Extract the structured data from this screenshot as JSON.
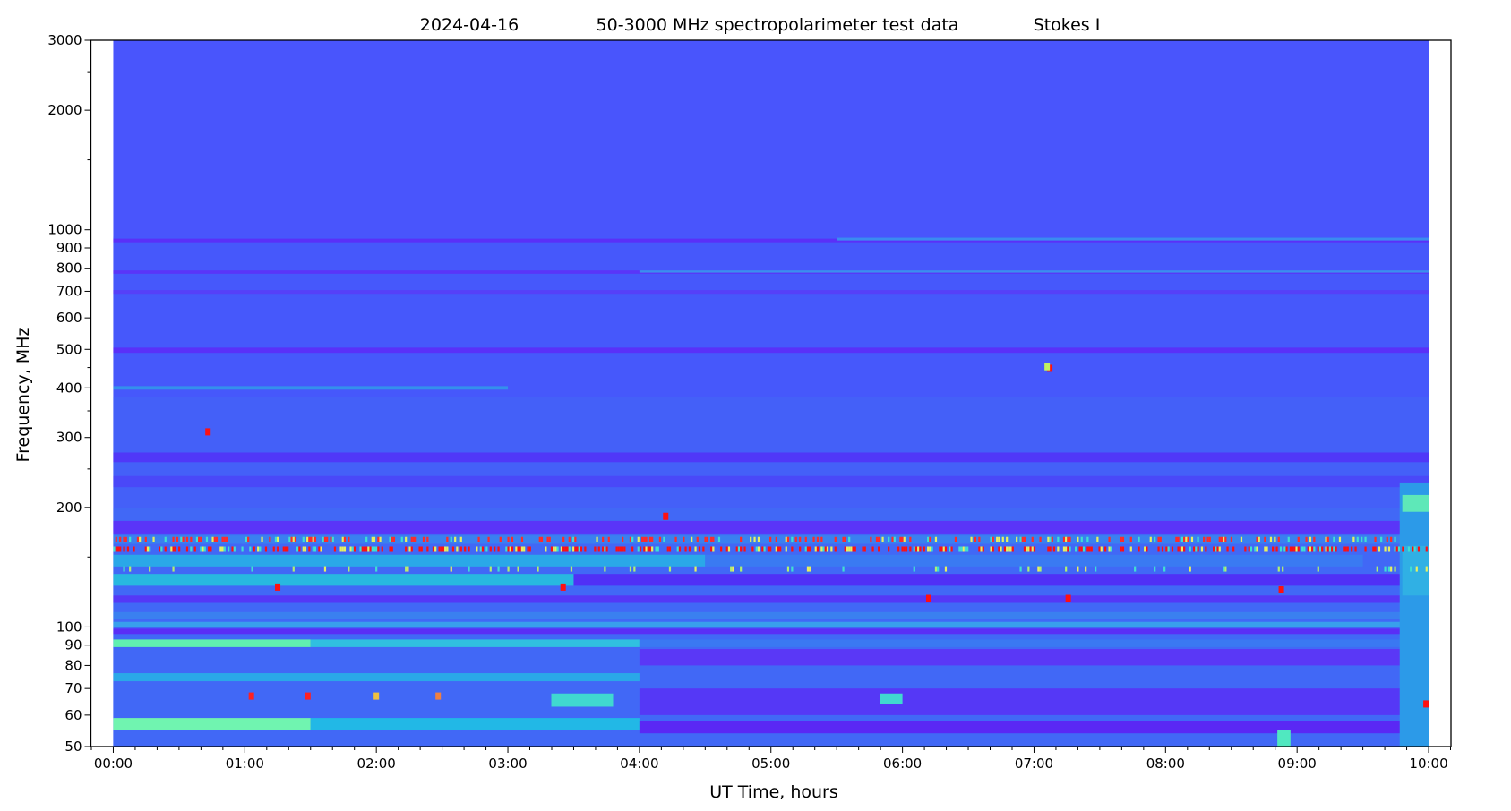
{
  "chart_data": {
    "type": "heatmap",
    "title_parts": [
      "2024-04-16",
      "50-3000 MHz spectropolarimeter test data",
      "Stokes I"
    ],
    "xlabel": "UT Time, hours",
    "ylabel": "Frequency, MHz",
    "x_unit": "hours UT",
    "xlim": [
      -0.17,
      10.17
    ],
    "data_time_range": [
      0,
      10
    ],
    "ylim": [
      50,
      3000
    ],
    "yscale": "log",
    "grid": false,
    "colormap": "rainbow",
    "x_ticks": [
      {
        "value": 0,
        "label": "00:00"
      },
      {
        "value": 1,
        "label": "01:00"
      },
      {
        "value": 2,
        "label": "02:00"
      },
      {
        "value": 3,
        "label": "03:00"
      },
      {
        "value": 4,
        "label": "04:00"
      },
      {
        "value": 5,
        "label": "05:00"
      },
      {
        "value": 6,
        "label": "06:00"
      },
      {
        "value": 7,
        "label": "07:00"
      },
      {
        "value": 8,
        "label": "08:00"
      },
      {
        "value": 9,
        "label": "09:00"
      },
      {
        "value": 10,
        "label": "10:00"
      }
    ],
    "x_minor_step_minutes": 10,
    "y_ticks": [
      {
        "value": 50,
        "label": "50"
      },
      {
        "value": 60,
        "label": "60"
      },
      {
        "value": 70,
        "label": "70"
      },
      {
        "value": 80,
        "label": "80"
      },
      {
        "value": 90,
        "label": "90"
      },
      {
        "value": 100,
        "label": "100"
      },
      {
        "value": 200,
        "label": "200"
      },
      {
        "value": 300,
        "label": "300"
      },
      {
        "value": 400,
        "label": "400"
      },
      {
        "value": 500,
        "label": "500"
      },
      {
        "value": 600,
        "label": "600"
      },
      {
        "value": 700,
        "label": "700"
      },
      {
        "value": 800,
        "label": "800"
      },
      {
        "value": 900,
        "label": "900"
      },
      {
        "value": 1000,
        "label": "1000"
      },
      {
        "value": 2000,
        "label": "2000"
      },
      {
        "value": 3000,
        "label": "3000"
      }
    ],
    "y_minor_ticks": [
      150,
      250,
      350,
      450,
      1500,
      2500
    ],
    "background_color": "#4955fc",
    "bands": [
      {
        "t": [
          0,
          10
        ],
        "f": [
          50,
          960
        ],
        "color": "#4658fb"
      },
      {
        "t": [
          0,
          10
        ],
        "f": [
          50,
          380
        ],
        "color": "#4460f8"
      },
      {
        "t": [
          0,
          10
        ],
        "f": [
          50,
          200
        ],
        "color": "#4168f6"
      },
      {
        "t": [
          0,
          10
        ],
        "f": [
          930,
          950
        ],
        "color": "#5a30f8"
      },
      {
        "t": [
          5.5,
          10
        ],
        "f": [
          940,
          955
        ],
        "color": "#3a8cf0"
      },
      {
        "t": [
          0,
          10
        ],
        "f": [
          775,
          790
        ],
        "color": "#5a35f8"
      },
      {
        "t": [
          4,
          10
        ],
        "f": [
          780,
          790
        ],
        "color": "#3a90ee"
      },
      {
        "t": [
          0,
          10
        ],
        "f": [
          690,
          705
        ],
        "color": "#5640f8"
      },
      {
        "t": [
          0,
          10
        ],
        "f": [
          490,
          505
        ],
        "color": "#5a30f8"
      },
      {
        "t": [
          0,
          3
        ],
        "f": [
          396,
          404
        ],
        "color": "#3490ec"
      },
      {
        "t": [
          0,
          10
        ],
        "f": [
          260,
          275
        ],
        "color": "#5038f8"
      },
      {
        "t": [
          0,
          10
        ],
        "f": [
          225,
          240
        ],
        "color": "#4a48f8"
      },
      {
        "t": [
          0,
          10
        ],
        "f": [
          172,
          185
        ],
        "color": "#5a35f8"
      },
      {
        "t": [
          0,
          10
        ],
        "f": [
          162,
          170
        ],
        "color": "#3a80f0"
      },
      {
        "t": [
          0,
          4.5
        ],
        "f": [
          142,
          152
        ],
        "color": "#2aa8e8"
      },
      {
        "t": [
          4.5,
          9.5
        ],
        "f": [
          142,
          152
        ],
        "color": "#3a7af2"
      },
      {
        "t": [
          0,
          3.5
        ],
        "f": [
          127,
          136
        ],
        "color": "#28b8e0"
      },
      {
        "t": [
          3.5,
          9.8
        ],
        "f": [
          127,
          136
        ],
        "color": "#5030f6"
      },
      {
        "t": [
          0,
          10
        ],
        "f": [
          115,
          120
        ],
        "color": "#5538f6"
      },
      {
        "t": [
          0,
          10
        ],
        "f": [
          105,
          109
        ],
        "color": "#3a80f0"
      },
      {
        "t": [
          0,
          10
        ],
        "f": [
          100,
          103
        ],
        "color": "#38a0ec"
      },
      {
        "t": [
          0,
          10
        ],
        "f": [
          96,
          99
        ],
        "color": "#5a2ef6"
      },
      {
        "t": [
          0,
          1.5
        ],
        "f": [
          89,
          93
        ],
        "color": "#60f0b0"
      },
      {
        "t": [
          1.5,
          4
        ],
        "f": [
          89,
          93
        ],
        "color": "#30c0e0"
      },
      {
        "t": [
          4,
          10
        ],
        "f": [
          89,
          93
        ],
        "color": "#3a78f2"
      },
      {
        "t": [
          0,
          4
        ],
        "f": [
          73,
          76.5
        ],
        "color": "#2aa8e8"
      },
      {
        "t": [
          4,
          9.8
        ],
        "f": [
          80,
          88
        ],
        "color": "#5a38f6"
      },
      {
        "t": [
          4,
          9.8
        ],
        "f": [
          60,
          70
        ],
        "color": "#5538f6"
      },
      {
        "t": [
          0,
          1.5
        ],
        "f": [
          55,
          59
        ],
        "color": "#70f4b0"
      },
      {
        "t": [
          1.5,
          4
        ],
        "f": [
          55,
          59
        ],
        "color": "#22b8e6"
      },
      {
        "t": [
          4,
          9.8
        ],
        "f": [
          54,
          58
        ],
        "color": "#5a28f4"
      },
      {
        "t": [
          3.33,
          3.8
        ],
        "f": [
          63,
          68
        ],
        "color": "#40d8d0"
      },
      {
        "t": [
          5.83,
          6.0
        ],
        "f": [
          64,
          68
        ],
        "color": "#40d8d0"
      },
      {
        "t": [
          9.78,
          10
        ],
        "f": [
          50,
          230
        ],
        "color": "#2c9ae8"
      },
      {
        "t": [
          9.8,
          10
        ],
        "f": [
          195,
          215
        ],
        "color": "#5ee8b8"
      },
      {
        "t": [
          9.8,
          10
        ],
        "f": [
          120,
          160
        ],
        "color": "#30b0e4"
      },
      {
        "t": [
          8.85,
          8.95
        ],
        "f": [
          50,
          55
        ],
        "color": "#50e8c0"
      }
    ],
    "bursts": [
      {
        "t": 0.72,
        "f": 310,
        "color": "#ff1010"
      },
      {
        "t": 7.12,
        "f": 448,
        "color": "#ff1010"
      },
      {
        "t": 7.1,
        "f": 452,
        "color": "#c0f060"
      },
      {
        "t": 1.05,
        "f": 67,
        "color": "#ff2020"
      },
      {
        "t": 1.48,
        "f": 67,
        "color": "#ff2020"
      },
      {
        "t": 2.0,
        "f": 67,
        "color": "#f0c040"
      },
      {
        "t": 2.47,
        "f": 67,
        "color": "#f08040"
      },
      {
        "t": 6.2,
        "f": 118,
        "color": "#ff1010"
      },
      {
        "t": 7.26,
        "f": 118,
        "color": "#ff1010"
      },
      {
        "t": 1.25,
        "f": 126,
        "color": "#ff1010"
      },
      {
        "t": 3.42,
        "f": 126,
        "color": "#ff1010"
      },
      {
        "t": 8.88,
        "f": 124,
        "color": "#ff1010"
      },
      {
        "t": 4.2,
        "f": 190,
        "color": "#ff1010"
      },
      {
        "t": 9.98,
        "f": 64,
        "color": "#ff1010"
      }
    ],
    "interference_lines": [
      {
        "f": 157,
        "color": "#ff1010",
        "density": 0.55
      },
      {
        "f": 166,
        "color": "#ff2a2a",
        "density": 0.3
      },
      {
        "f": 140,
        "color": "#b0f070",
        "density": 0.08
      }
    ]
  }
}
